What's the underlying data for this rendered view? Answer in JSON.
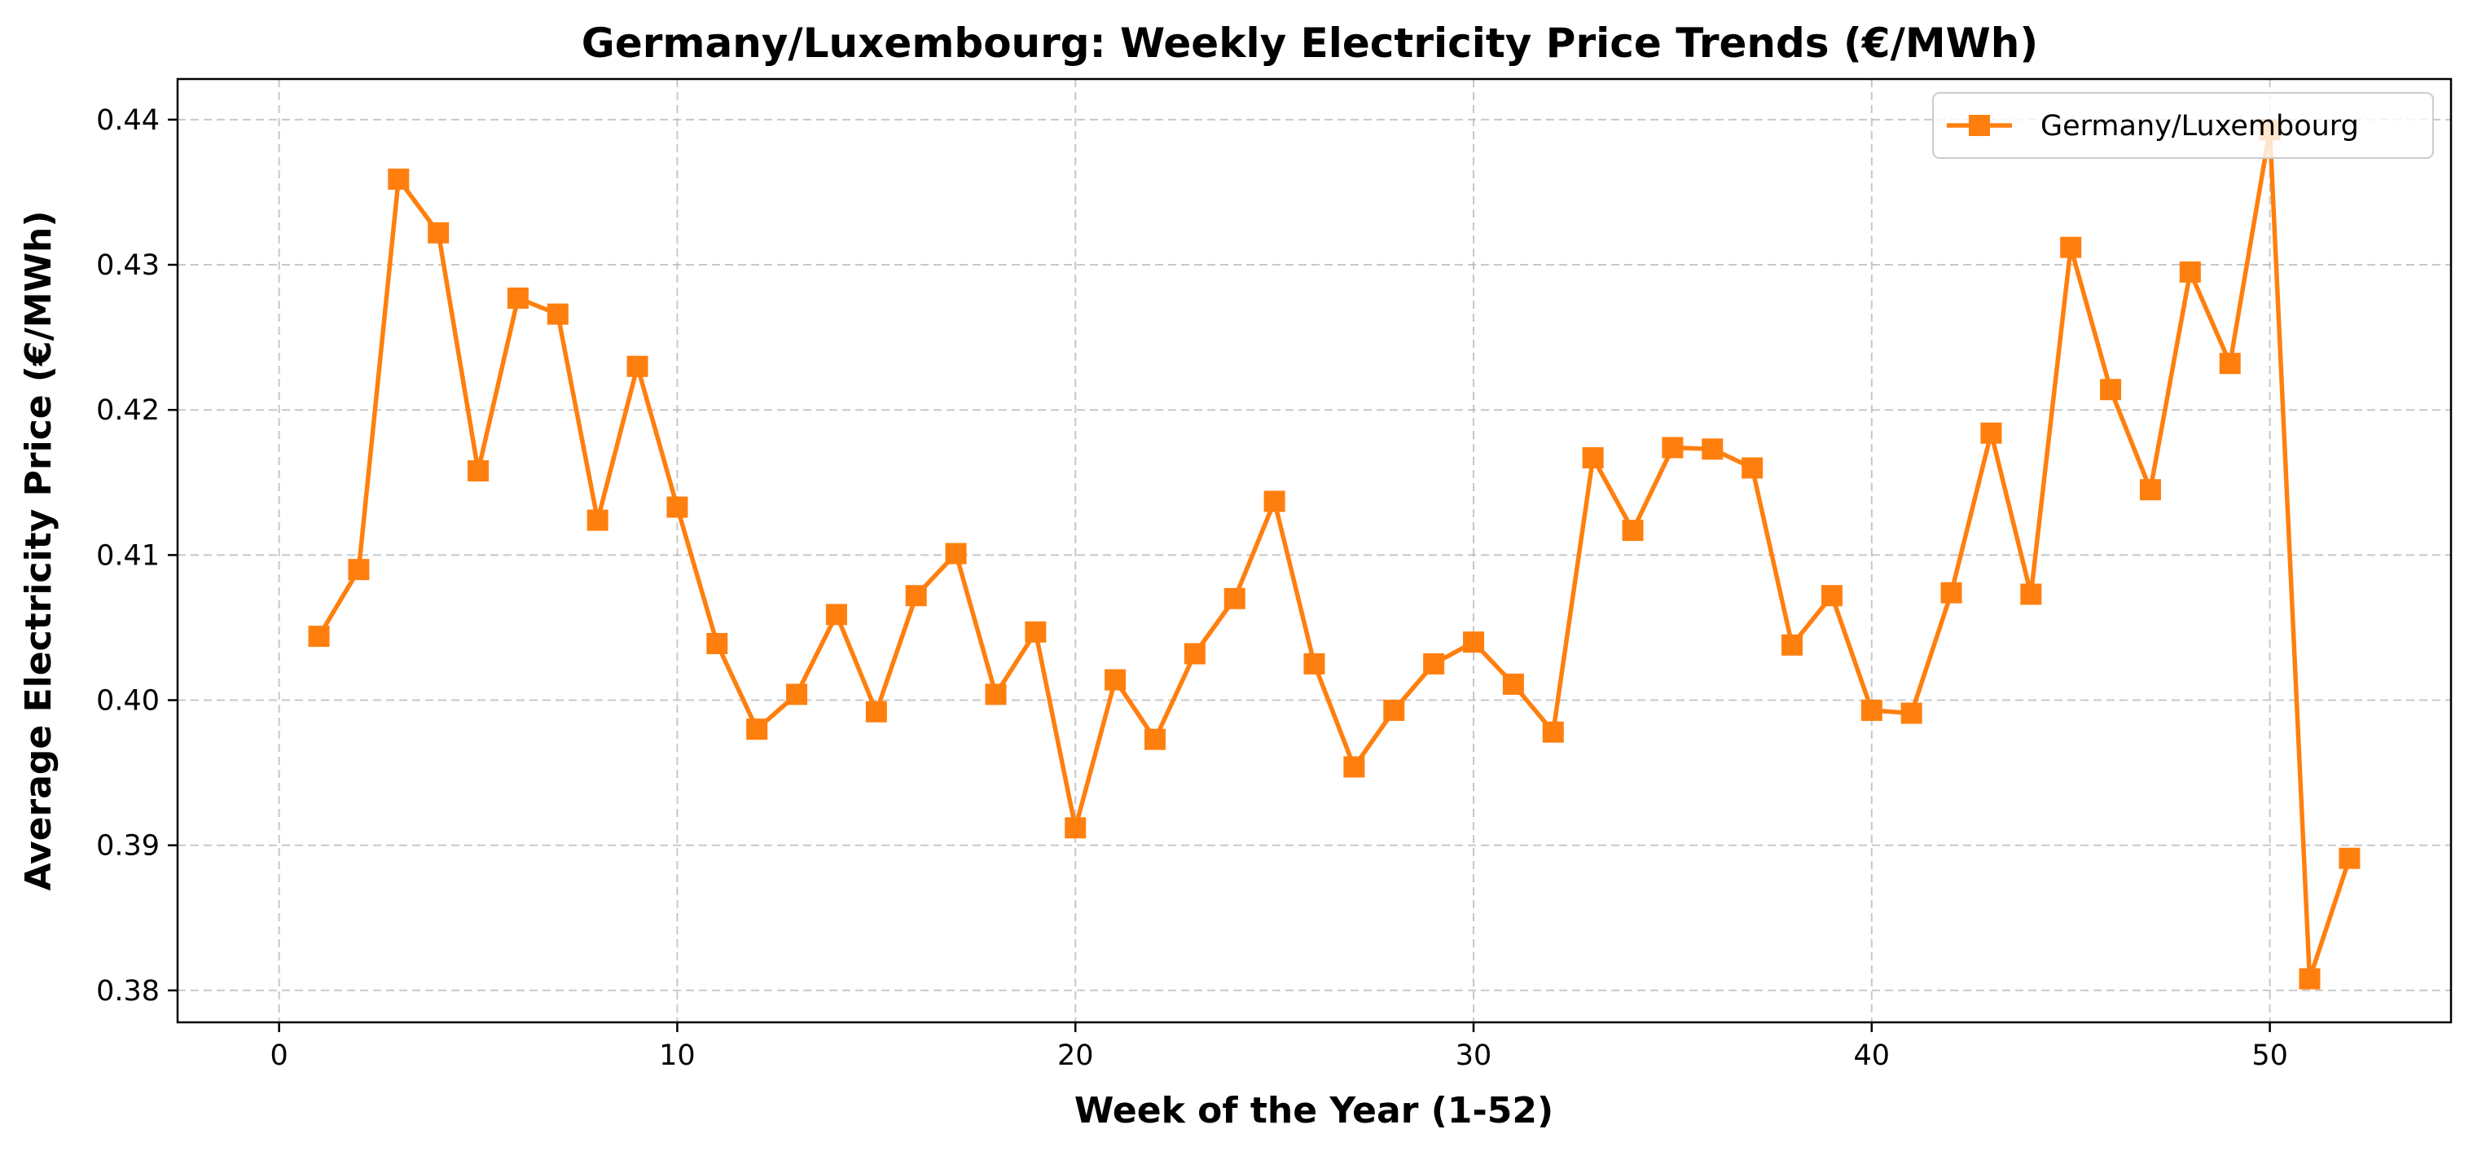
{
  "chart_data": {
    "type": "line",
    "title": "Germany/Luxembourg: Weekly Electricity Price Trends (€/MWh)",
    "xlabel": "Week of the Year (1-52)",
    "ylabel": "Average Electricity Price (€/MWh)",
    "xlim": [
      -2.55,
      54.55
    ],
    "ylim": [
      0.3778,
      0.4428
    ],
    "x_ticks": [
      0,
      10,
      20,
      30,
      40,
      50
    ],
    "x_tick_labels": [
      "0",
      "10",
      "20",
      "30",
      "40",
      "50"
    ],
    "y_ticks": [
      0.38,
      0.39,
      0.4,
      0.41,
      0.42,
      0.43,
      0.44
    ],
    "y_tick_labels": [
      "0.38",
      "0.39",
      "0.40",
      "0.41",
      "0.42",
      "0.43",
      "0.44"
    ],
    "grid": true,
    "legend_position": "top-right",
    "series": [
      {
        "name": "Germany/Luxembourg",
        "color": "#ff7f0e",
        "marker": "square",
        "x": [
          1,
          2,
          3,
          4,
          5,
          6,
          7,
          8,
          9,
          10,
          11,
          12,
          13,
          14,
          15,
          16,
          17,
          18,
          19,
          20,
          21,
          22,
          23,
          24,
          25,
          26,
          27,
          28,
          29,
          30,
          31,
          32,
          33,
          34,
          35,
          36,
          37,
          38,
          39,
          40,
          41,
          42,
          43,
          44,
          45,
          46,
          47,
          48,
          49,
          50,
          51,
          52
        ],
        "values": [
          0.4044,
          0.409,
          0.4359,
          0.4322,
          0.4158,
          0.4277,
          0.4266,
          0.4124,
          0.423,
          0.4133,
          0.4039,
          0.398,
          0.4004,
          0.4059,
          0.3992,
          0.4072,
          0.4101,
          0.4004,
          0.4047,
          0.3912,
          0.4014,
          0.3973,
          0.4032,
          0.407,
          0.4137,
          0.4025,
          0.3954,
          0.3993,
          0.4025,
          0.404,
          0.4011,
          0.3978,
          0.4167,
          0.4117,
          0.4174,
          0.4173,
          0.416,
          0.4038,
          0.4072,
          0.3993,
          0.3991,
          0.4074,
          0.4184,
          0.4073,
          0.4312,
          0.4214,
          0.4145,
          0.4295,
          0.4232,
          0.4393,
          0.3808,
          0.3891
        ]
      }
    ]
  }
}
